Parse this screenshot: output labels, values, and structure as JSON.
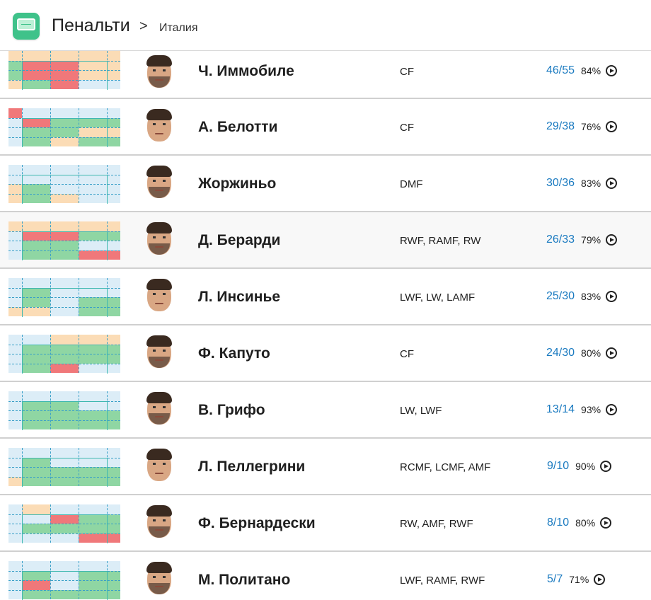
{
  "header": {
    "logo_icon": "penalty-goal-icon",
    "title": "Пенальти",
    "separator": ">",
    "breadcrumb": "Италия"
  },
  "colors": {
    "goal_green": "#8fd6a3",
    "miss_red": "#f0787a",
    "outside_orange": "#fbdcb6",
    "empty_blue": "#dcedf7",
    "frame": "#3eb8b0",
    "score_blue": "#1a7ac0"
  },
  "players": [
    {
      "name": "Ч. Иммобиле",
      "positions": "CF",
      "score": "46/55",
      "percent": "84%",
      "zones": [
        "o",
        "o",
        "o",
        "o",
        "g",
        "r",
        "r",
        "o",
        "g",
        "r",
        "r",
        "o",
        "o",
        "g",
        "r",
        "e"
      ]
    },
    {
      "name": "А. Белотти",
      "positions": "CF",
      "score": "29/38",
      "percent": "76%",
      "zones": [
        "r",
        "e",
        "e",
        "e",
        "e",
        "r",
        "g",
        "g",
        "e",
        "g",
        "g",
        "o",
        "e",
        "g",
        "o",
        "g"
      ]
    },
    {
      "name": "Жоржиньо",
      "positions": "DMF",
      "score": "30/36",
      "percent": "83%",
      "zones": [
        "e",
        "e",
        "e",
        "e",
        "e",
        "e",
        "e",
        "e",
        "o",
        "g",
        "e",
        "e",
        "o",
        "g",
        "o",
        "e"
      ]
    },
    {
      "name": "Д. Берарди",
      "positions": "RWF, RAMF, RW",
      "score": "26/33",
      "percent": "79%",
      "zones": [
        "o",
        "o",
        "o",
        "o",
        "e",
        "r",
        "r",
        "g",
        "e",
        "g",
        "g",
        "e",
        "e",
        "g",
        "g",
        "r"
      ]
    },
    {
      "name": "Л. Инсинье",
      "positions": "LWF, LW, LAMF",
      "score": "25/30",
      "percent": "83%",
      "zones": [
        "e",
        "e",
        "e",
        "e",
        "e",
        "g",
        "e",
        "e",
        "e",
        "g",
        "e",
        "g",
        "o",
        "o",
        "e",
        "g"
      ]
    },
    {
      "name": "Ф. Капуто",
      "positions": "CF",
      "score": "24/30",
      "percent": "80%",
      "zones": [
        "e",
        "e",
        "o",
        "o",
        "e",
        "g",
        "g",
        "g",
        "e",
        "g",
        "g",
        "g",
        "e",
        "g",
        "r",
        "e"
      ]
    },
    {
      "name": "В. Грифо",
      "positions": "LW, LWF",
      "score": "13/14",
      "percent": "93%",
      "zones": [
        "e",
        "e",
        "e",
        "e",
        "e",
        "g",
        "g",
        "e",
        "e",
        "g",
        "g",
        "g",
        "e",
        "g",
        "g",
        "g"
      ]
    },
    {
      "name": "Л. Пеллегрини",
      "positions": "RCMF, LCMF, AMF",
      "score": "9/10",
      "percent": "90%",
      "zones": [
        "e",
        "e",
        "e",
        "e",
        "e",
        "g",
        "e",
        "e",
        "e",
        "g",
        "g",
        "g",
        "o",
        "g",
        "g",
        "g"
      ]
    },
    {
      "name": "Ф. Бернардески",
      "positions": "RW, AMF, RWF",
      "score": "8/10",
      "percent": "80%",
      "zones": [
        "e",
        "o",
        "e",
        "e",
        "e",
        "e",
        "r",
        "g",
        "e",
        "g",
        "g",
        "g",
        "e",
        "e",
        "e",
        "r"
      ]
    },
    {
      "name": "М. Политано",
      "positions": "LWF, RAMF, RWF",
      "score": "5/7",
      "percent": "71%",
      "zones": [
        "e",
        "e",
        "e",
        "e",
        "e",
        "g",
        "e",
        "g",
        "e",
        "r",
        "e",
        "g",
        "e",
        "g",
        "g",
        "g"
      ]
    }
  ]
}
